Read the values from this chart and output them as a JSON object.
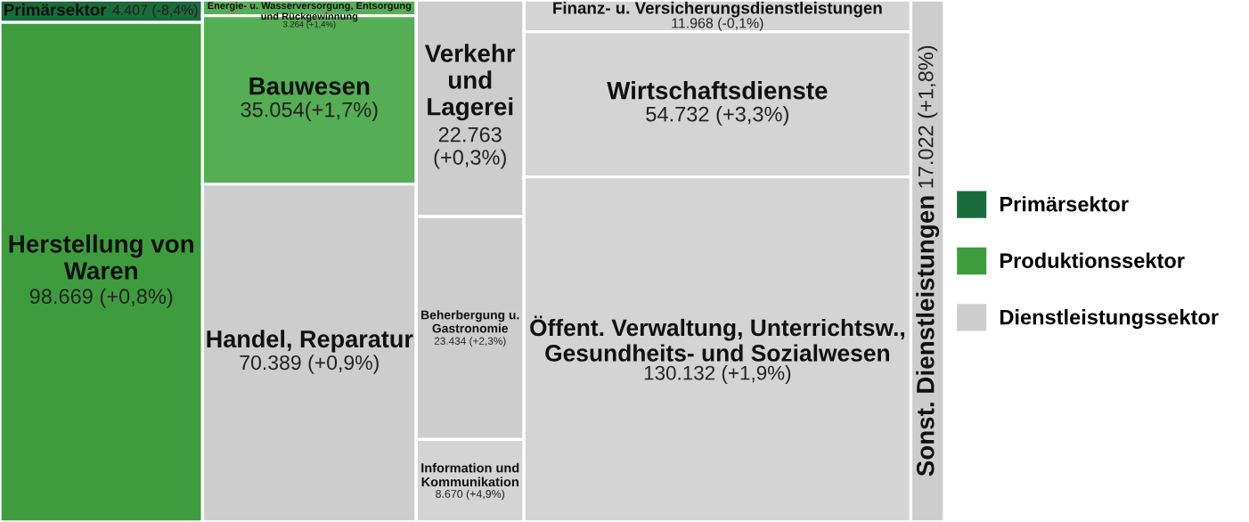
{
  "chart_data": {
    "type": "other",
    "legend": "right",
    "categories": [
      "Primärsektor",
      "Herstellung von\nWaren",
      "Energie- u. Wasserversorgung, Entsorgung\nund Rückgewinnung",
      "Bauwesen",
      "Handel, Reparatur",
      "Verkehr\nund\nLagerei",
      "Beherbergung u.\nGastronomie",
      "Information und\nKommunikation",
      "Finanz- u. Versicherungsdienstleistungen",
      "Wirtschaftsdienste",
      "Öffent. Verwaltung, Unterrichtsw.,\nGesundheits- und Sozialwesen",
      "Sonst. Dienstleistungen"
    ],
    "series": [
      {
        "name": "Primärsektor",
        "color": "#1a6b3c",
        "colors": [
          "#1a6b3c",
          null,
          null,
          null,
          null,
          null,
          null,
          null,
          null,
          null,
          null,
          null
        ],
        "values": [
          4407,
          null,
          null,
          null,
          null,
          null,
          null,
          null,
          null,
          null,
          null,
          null
        ],
        "value_labels": [
          "4.407 (-8,4%)",
          null,
          null,
          null,
          null,
          null,
          null,
          null,
          null,
          null,
          null,
          null
        ]
      },
      {
        "name": "Produktionssektor",
        "color": "#3e9c3e",
        "colors": [
          null,
          "#3e9c3e",
          "#55ad55",
          "#55ad55",
          null,
          null,
          null,
          null,
          null,
          null,
          null,
          null
        ],
        "values": [
          null,
          98669,
          3264,
          35054,
          null,
          null,
          null,
          null,
          null,
          null,
          null,
          null
        ],
        "value_labels": [
          null,
          "98.669 (+0,8%)",
          "3.264 (+1,4%)",
          "35.054(+1,7%)",
          null,
          null,
          null,
          null,
          null,
          null,
          null,
          null
        ]
      },
      {
        "name": "Dienstleistungssektor",
        "color": "#cdcdcd",
        "colors": [
          null,
          null,
          null,
          null,
          "#cdcdcd",
          "#cdcdcd",
          "#cdcdcd",
          "#d4d4d4",
          "#d4d4d4",
          "#d4d4d4",
          "#d4d4d4",
          "#cdcdcd"
        ],
        "values": [
          null,
          null,
          null,
          null,
          70389,
          22763,
          23434,
          8670,
          11968,
          54732,
          130132,
          17022
        ],
        "value_labels": [
          null,
          null,
          null,
          null,
          "70.389 (+0,9%)",
          "22.763\n(+0,3%)",
          "23.434 (+2,3%)",
          "8.670 (+4,9%)",
          "11.968 (-0,1%)",
          "54.732 (+3,3%)",
          "130.132 (+1,9%)",
          "17.022 (+1,8%)"
        ]
      }
    ]
  }
}
